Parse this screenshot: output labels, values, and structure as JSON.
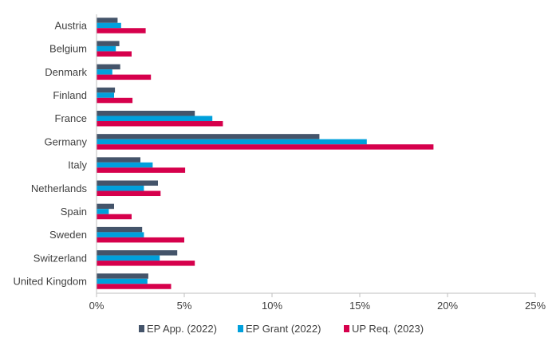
{
  "chart_data": {
    "type": "bar",
    "orientation": "horizontal",
    "categories": [
      "Austria",
      "Belgium",
      "Denmark",
      "Finland",
      "France",
      "Germany",
      "Italy",
      "Netherlands",
      "Spain",
      "Sweden",
      "Switzerland",
      "United Kingdom"
    ],
    "series": [
      {
        "name": "EP App. (2022)",
        "color": "#44546a",
        "values": [
          1.2,
          1.3,
          1.35,
          1.05,
          5.6,
          12.7,
          2.5,
          3.5,
          1.0,
          2.6,
          4.6,
          2.95
        ]
      },
      {
        "name": "EP Grant (2022)",
        "color": "#00a0dc",
        "values": [
          1.4,
          1.1,
          0.9,
          1.0,
          6.6,
          15.4,
          3.2,
          2.7,
          0.7,
          2.7,
          3.6,
          2.9
        ]
      },
      {
        "name": "UP Req. (2023)",
        "color": "#d6004c",
        "values": [
          2.8,
          2.0,
          3.1,
          2.05,
          7.2,
          19.2,
          5.05,
          3.65,
          2.0,
          5.0,
          5.6,
          4.25
        ]
      }
    ],
    "xlim": [
      0,
      25
    ],
    "xticks": [
      0,
      5,
      10,
      15,
      20,
      25
    ],
    "xtick_labels": [
      "0%",
      "5%",
      "10%",
      "15%",
      "20%",
      "25%"
    ],
    "legend_position": "bottom",
    "grid": false
  }
}
